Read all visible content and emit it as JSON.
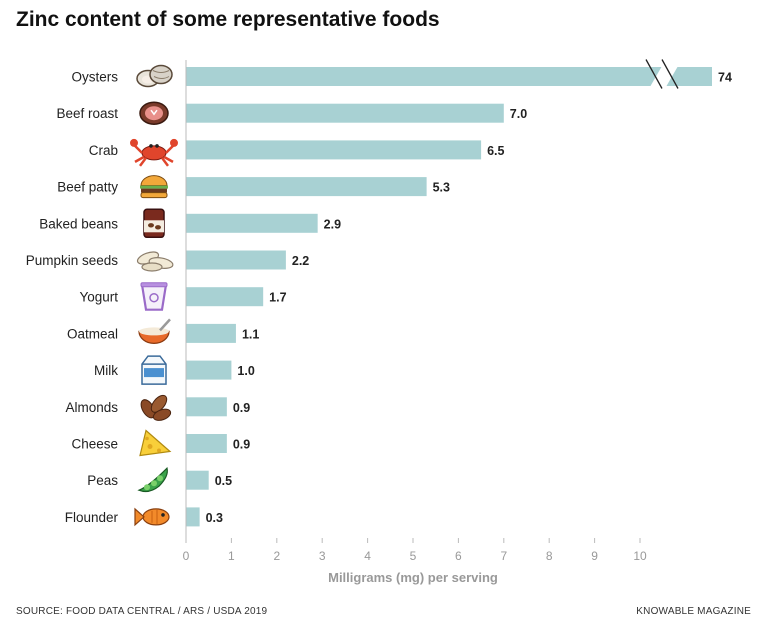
{
  "title": "Zinc content of some representative foods",
  "source": "SOURCE: FOOD DATA CENTRAL / ARS / USDA 2019",
  "publisher": "KNOWABLE MAGAZINE",
  "chart_data": {
    "type": "bar",
    "orientation": "horizontal",
    "title": "Zinc content of some representative foods",
    "xlabel": "Milligrams (mg) per serving",
    "ylabel": "",
    "xlim": [
      0,
      10
    ],
    "xticks": [
      "0",
      "1",
      "2",
      "3",
      "4",
      "5",
      "6",
      "7",
      "8",
      "9",
      "10"
    ],
    "grid": false,
    "axis_break": "Oysters bar exceeds axis maximum (broken bar)",
    "categories": [
      "Oysters",
      "Beef roast",
      "Crab",
      "Beef patty",
      "Baked beans",
      "Pumpkin seeds",
      "Yogurt",
      "Oatmeal",
      "Milk",
      "Almonds",
      "Cheese",
      "Peas",
      "Flounder"
    ],
    "values": [
      74,
      7.0,
      6.5,
      5.3,
      2.9,
      2.2,
      1.7,
      1.1,
      1.0,
      0.9,
      0.9,
      0.5,
      0.3
    ],
    "value_labels": [
      "74",
      "7.0",
      "6.5",
      "5.3",
      "2.9",
      "2.2",
      "1.7",
      "1.1",
      "1.0",
      "0.9",
      "0.9",
      "0.5",
      "0.3"
    ],
    "icons": [
      "oyster-icon",
      "beef-roast-icon",
      "crab-icon",
      "burger-icon",
      "bean-can-icon",
      "pumpkin-seeds-icon",
      "yogurt-icon",
      "oatmeal-icon",
      "milk-carton-icon",
      "almonds-icon",
      "cheese-icon",
      "peas-icon",
      "fish-icon"
    ],
    "bar_color": "#a8d1d3"
  }
}
